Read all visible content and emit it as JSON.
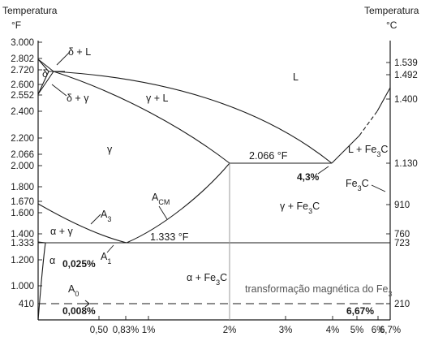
{
  "left_axis": {
    "title": "Temperatura",
    "unit": "°F",
    "ticks": [
      {
        "label": "3.000",
        "value": 3000
      },
      {
        "label": "2.802",
        "value": 2802
      },
      {
        "label": "2.720",
        "value": 2720
      },
      {
        "label": "2.600",
        "value": 2600
      },
      {
        "label": "2.552",
        "value": 2552
      },
      {
        "label": "2.400",
        "value": 2400
      },
      {
        "label": "2.200",
        "value": 2200
      },
      {
        "label": "2.066",
        "value": 2066
      },
      {
        "label": "2.000",
        "value": 2000
      },
      {
        "label": "1.800",
        "value": 1800
      },
      {
        "label": "1.670",
        "value": 1670
      },
      {
        "label": "1.600",
        "value": 1600
      },
      {
        "label": "1.400",
        "value": 1400
      },
      {
        "label": "1.333",
        "value": 1333
      },
      {
        "label": "1.200",
        "value": 1200
      },
      {
        "label": "1.000",
        "value": 1000
      },
      {
        "label": "410",
        "value": 410
      }
    ]
  },
  "right_axis": {
    "title": "Temperatura",
    "unit": "°C",
    "ticks": [
      {
        "label": "1.539",
        "value": 1539
      },
      {
        "label": "1.492",
        "value": 1492
      },
      {
        "label": "1.400",
        "value": 1400
      },
      {
        "label": "1.130",
        "value": 1130
      },
      {
        "label": "910",
        "value": 910
      },
      {
        "label": "760",
        "value": 760
      },
      {
        "label": "723",
        "value": 723
      },
      {
        "label": "210",
        "value": 210
      }
    ]
  },
  "bottom_axis": {
    "ticks": [
      {
        "label": "0,50",
        "value": 0.5
      },
      {
        "label": "0,83%",
        "value": 0.83
      },
      {
        "label": "1%",
        "value": 1.0
      },
      {
        "label": "2%",
        "value": 2.0
      },
      {
        "label": "3%",
        "value": 3.0
      },
      {
        "label": "4%",
        "value": 4.0
      },
      {
        "label": "5%",
        "value": 5.0
      },
      {
        "label": "6%",
        "value": 6.0
      },
      {
        "label": "6,7%",
        "value": 6.7
      }
    ]
  },
  "phase_labels": {
    "delta_liquid": "δ + L",
    "delta": "δ",
    "delta_gamma": "δ + γ",
    "gamma_liquid": "γ + L",
    "liquid": "L",
    "gamma": "γ",
    "liquid_cementite": "L + Fe",
    "eutectic_temp": "2.066 °F",
    "eutectic_comp": "4,3%",
    "cementite": "Fe",
    "acm": "A",
    "acm_sub": "CM",
    "a3": "A",
    "a3_sub": "3",
    "gamma_cementite": "γ + Fe",
    "alpha_gamma": "α + γ",
    "eutectoid_temp": "1.333 °F",
    "alpha": "α",
    "alpha_solubility": "0,025%",
    "a1": "A",
    "a1_sub": "1",
    "alpha_cementite": "α + Fe",
    "a0": "A",
    "a0_sub": "0",
    "magnetic": "transformação magnética do Fe",
    "solubility_rt": "0,008%",
    "cementite_comp": "6,67%",
    "sub3": "3",
    "subC": "C"
  }
}
